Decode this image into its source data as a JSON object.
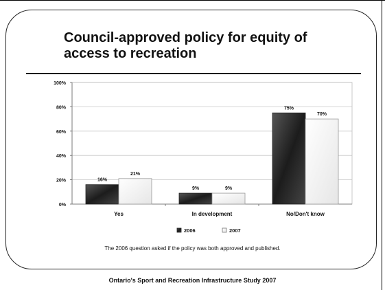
{
  "slide": {
    "title": "Council-approved policy for equity of access to recreation",
    "footnote": "The 2006 question asked if the policy was both approved and published.",
    "footer": "Ontario's Sport and Recreation Infrastructure Study 2007"
  },
  "chart_data": {
    "type": "bar",
    "title": "",
    "xlabel": "",
    "ylabel": "",
    "categories": [
      "Yes",
      "In development",
      "No/Don't know"
    ],
    "series": [
      {
        "name": "2006",
        "values": [
          16,
          9,
          75
        ],
        "labels": [
          "16%",
          "9%",
          "75%"
        ],
        "color": "#3a3a3a"
      },
      {
        "name": "2007",
        "values": [
          21,
          9,
          70
        ],
        "labels": [
          "21%",
          "9%",
          "70%"
        ],
        "color": "#f4f4f4"
      }
    ],
    "ylim": [
      0,
      100
    ],
    "yticks": [
      0,
      20,
      40,
      60,
      80,
      100
    ],
    "ytick_labels": [
      "0%",
      "20%",
      "40%",
      "60%",
      "80%",
      "100%"
    ],
    "grid": true,
    "legend_position": "bottom"
  }
}
